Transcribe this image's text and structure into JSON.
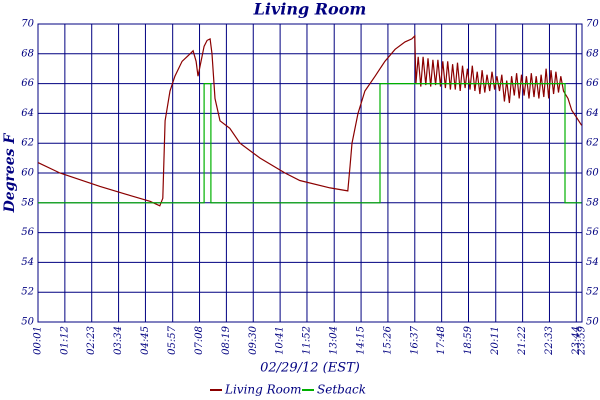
{
  "chart_data": {
    "type": "line",
    "title": "Living Room",
    "ylabel": "Degrees F",
    "xlabel": "02/29/12 (EST)",
    "xlim": [
      1,
      1439
    ],
    "ylim": [
      50,
      70
    ],
    "xticks": [
      {
        "value": 1,
        "label": "00:01"
      },
      {
        "value": 72,
        "label": "01:12"
      },
      {
        "value": 143,
        "label": "02:23"
      },
      {
        "value": 214,
        "label": "03:34"
      },
      {
        "value": 285,
        "label": "04:45"
      },
      {
        "value": 357,
        "label": "05:57"
      },
      {
        "value": 428,
        "label": "07:08"
      },
      {
        "value": 499,
        "label": "08:19"
      },
      {
        "value": 570,
        "label": "09:30"
      },
      {
        "value": 641,
        "label": "10:41"
      },
      {
        "value": 712,
        "label": "11:52"
      },
      {
        "value": 784,
        "label": "13:04"
      },
      {
        "value": 855,
        "label": "14:15"
      },
      {
        "value": 926,
        "label": "15:26"
      },
      {
        "value": 997,
        "label": "16:37"
      },
      {
        "value": 1068,
        "label": "17:48"
      },
      {
        "value": 1139,
        "label": "18:59"
      },
      {
        "value": 1211,
        "label": "20:11"
      },
      {
        "value": 1282,
        "label": "21:22"
      },
      {
        "value": 1353,
        "label": "22:33"
      },
      {
        "value": 1424,
        "label": "23:44"
      },
      {
        "value": 1439,
        "label": "23:59"
      }
    ],
    "yticks": [
      50,
      52,
      54,
      56,
      58,
      60,
      62,
      64,
      66,
      68,
      70
    ],
    "grid": true,
    "series": [
      {
        "name": "Living Room",
        "color": "#8b0000",
        "x": [
          1,
          59,
          165,
          244,
          297,
          323,
          331,
          337,
          350,
          363,
          382,
          403,
          411,
          419,
          424,
          440,
          448,
          456,
          461,
          469,
          482,
          508,
          535,
          588,
          654,
          693,
          773,
          820,
          826,
          831,
          847,
          865,
          892,
          918,
          945,
          971,
          989,
          997,
          1000,
          1006,
          1013,
          1019,
          1026,
          1032,
          1039,
          1045,
          1052,
          1058,
          1065,
          1071,
          1078,
          1084,
          1091,
          1097,
          1104,
          1110,
          1117,
          1123,
          1130,
          1136,
          1143,
          1149,
          1156,
          1162,
          1169,
          1175,
          1182,
          1188,
          1195,
          1201,
          1208,
          1214,
          1221,
          1227,
          1234,
          1240,
          1247,
          1253,
          1260,
          1266,
          1273,
          1279,
          1286,
          1292,
          1299,
          1305,
          1312,
          1318,
          1325,
          1331,
          1338,
          1344,
          1351,
          1357,
          1364,
          1370,
          1377,
          1383,
          1390,
          1402,
          1412,
          1423,
          1438
        ],
        "values": [
          60.7,
          60.0,
          59.1,
          58.5,
          58.1,
          57.8,
          58.3,
          63.5,
          65.5,
          66.5,
          67.5,
          68.0,
          68.2,
          67.5,
          66.5,
          68.5,
          68.9,
          69.0,
          68.0,
          65.0,
          63.5,
          63.0,
          62.0,
          61.0,
          60.0,
          59.5,
          59.0,
          58.8,
          60.5,
          62.0,
          64.0,
          65.5,
          66.5,
          67.5,
          68.3,
          68.8,
          69.0,
          69.2,
          66.0,
          67.8,
          65.8,
          67.8,
          65.9,
          67.7,
          65.8,
          67.6,
          65.9,
          67.6,
          65.8,
          67.5,
          65.7,
          67.5,
          65.6,
          67.3,
          65.6,
          67.4,
          65.5,
          67.2,
          65.7,
          67.0,
          65.6,
          67.2,
          65.5,
          66.8,
          65.3,
          66.9,
          65.4,
          66.6,
          65.5,
          66.8,
          65.6,
          66.5,
          65.5,
          66.6,
          64.8,
          66.2,
          64.7,
          66.5,
          65.2,
          66.7,
          65.0,
          66.6,
          65.2,
          66.5,
          65.0,
          66.7,
          65.1,
          66.5,
          65.0,
          66.6,
          65.1,
          67.0,
          65.0,
          66.9,
          65.3,
          66.8,
          65.4,
          66.5,
          65.5,
          65.0,
          64.2,
          63.8,
          63.2
        ]
      },
      {
        "name": "Setback",
        "color": "#00b000",
        "x": [
          1,
          440,
          440,
          458,
          458,
          905,
          905,
          1394,
          1394,
          1438
        ],
        "values": [
          58,
          58,
          66,
          66,
          58,
          58,
          66,
          66,
          58,
          58
        ]
      }
    ]
  }
}
